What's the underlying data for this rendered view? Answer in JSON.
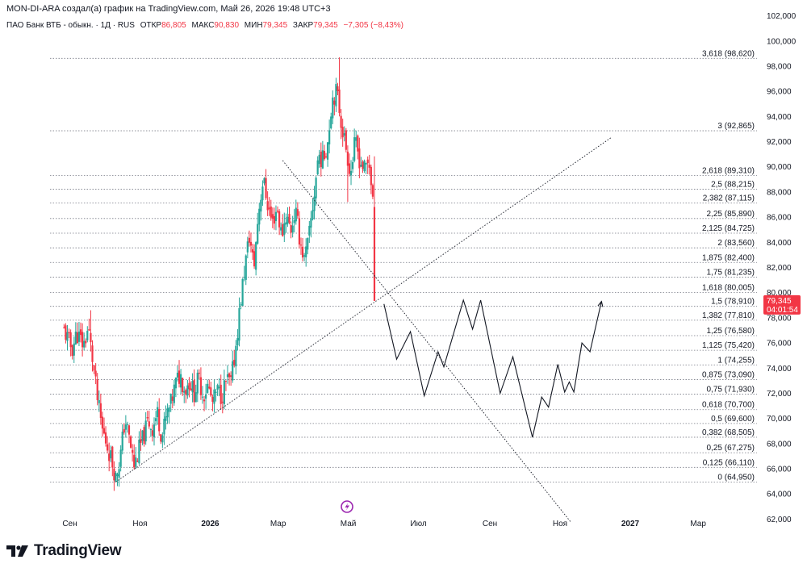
{
  "header": {
    "author_line": "MON-DI-ARA создал(а) график на TradingView.com, Май 26, 2026 19:48 UTC+3"
  },
  "symbol": {
    "name": "ПАО Банк ВТБ - обыкн. · 1Д · RUS",
    "open_label": "ОТКР",
    "open_value": "86,805",
    "high_label": "МАКС",
    "high_value": "90,830",
    "low_label": "МИН",
    "low_value": "79,345",
    "close_label": "ЗАКР",
    "close_value": "79,345",
    "change_value": "−7,305 (−8,43%)"
  },
  "price_badge": {
    "price": "79,345",
    "countdown": "04:01:54",
    "color": "#f23645"
  },
  "colors": {
    "up": "#26a69a",
    "down": "#f23645",
    "projection": "#131722",
    "fib_line": "#787b86"
  },
  "footer": {
    "brand": "TradingView",
    "logo_icon": "tradingview-logo-icon"
  },
  "chart_data": {
    "type": "candlestick",
    "y_axis": {
      "range": [
        61.0,
        103.0
      ],
      "ticks": [
        "102,000",
        "100,000",
        "98,000",
        "96,000",
        "94,000",
        "92,000",
        "90,000",
        "88,000",
        "86,000",
        "84,000",
        "82,000",
        "80,000",
        "78,000",
        "76,000",
        "74,000",
        "72,000",
        "70,000",
        "68,000",
        "66,000",
        "64,000",
        "62,000"
      ]
    },
    "x_axis": {
      "labels": [
        {
          "text": "Сен",
          "day": -20,
          "bold": false
        },
        {
          "text": "Ноя",
          "day": 41,
          "bold": false
        },
        {
          "text": "2026",
          "day": 102,
          "bold": true
        },
        {
          "text": "Мар",
          "day": 161,
          "bold": false
        },
        {
          "text": "Май",
          "day": 222,
          "bold": false
        },
        {
          "text": "Июл",
          "day": 283,
          "bold": false
        },
        {
          "text": "Сен",
          "day": 345,
          "bold": false
        },
        {
          "text": "Ноя",
          "day": 406,
          "bold": false
        },
        {
          "text": "2027",
          "day": 467,
          "bold": true
        },
        {
          "text": "Мар",
          "day": 526,
          "bold": false
        }
      ]
    },
    "price_path": [
      {
        "day": -25,
        "price": 77.0
      },
      {
        "day": -18,
        "price": 75.5
      },
      {
        "day": -14,
        "price": 76.8
      },
      {
        "day": -8,
        "price": 75.8
      },
      {
        "day": -4,
        "price": 77.2
      },
      {
        "day": 0,
        "price": 74.5
      },
      {
        "day": 4,
        "price": 71.5
      },
      {
        "day": 8,
        "price": 69.2
      },
      {
        "day": 12,
        "price": 68.0
      },
      {
        "day": 16,
        "price": 66.8
      },
      {
        "day": 20,
        "price": 65.3
      },
      {
        "day": 24,
        "price": 67.0
      },
      {
        "day": 28,
        "price": 70.0
      },
      {
        "day": 32,
        "price": 68.2
      },
      {
        "day": 36,
        "price": 66.2
      },
      {
        "day": 40,
        "price": 67.5
      },
      {
        "day": 44,
        "price": 68.5
      },
      {
        "day": 48,
        "price": 69.8
      },
      {
        "day": 52,
        "price": 69.2
      },
      {
        "day": 56,
        "price": 70.5
      },
      {
        "day": 60,
        "price": 68.5
      },
      {
        "day": 64,
        "price": 70.2
      },
      {
        "day": 68,
        "price": 71.2
      },
      {
        "day": 72,
        "price": 72.8
      },
      {
        "day": 76,
        "price": 73.5
      },
      {
        "day": 80,
        "price": 72.2
      },
      {
        "day": 84,
        "price": 73.0
      },
      {
        "day": 88,
        "price": 72.0
      },
      {
        "day": 92,
        "price": 73.2
      },
      {
        "day": 96,
        "price": 71.8
      },
      {
        "day": 100,
        "price": 72.6
      },
      {
        "day": 104,
        "price": 71.2
      },
      {
        "day": 108,
        "price": 72.2
      },
      {
        "day": 112,
        "price": 71.8
      },
      {
        "day": 116,
        "price": 73.0
      },
      {
        "day": 120,
        "price": 72.8
      },
      {
        "day": 124,
        "price": 75.5
      },
      {
        "day": 128,
        "price": 79.0
      },
      {
        "day": 132,
        "price": 82.0
      },
      {
        "day": 136,
        "price": 84.5
      },
      {
        "day": 140,
        "price": 82.0
      },
      {
        "day": 144,
        "price": 86.5
      },
      {
        "day": 148,
        "price": 89.0
      },
      {
        "day": 152,
        "price": 87.0
      },
      {
        "day": 156,
        "price": 85.5
      },
      {
        "day": 160,
        "price": 86.8
      },
      {
        "day": 164,
        "price": 84.5
      },
      {
        "day": 168,
        "price": 86.2
      },
      {
        "day": 172,
        "price": 85.0
      },
      {
        "day": 176,
        "price": 86.5
      },
      {
        "day": 180,
        "price": 84.2
      },
      {
        "day": 184,
        "price": 82.5
      },
      {
        "day": 188,
        "price": 84.5
      },
      {
        "day": 192,
        "price": 87.5
      },
      {
        "day": 196,
        "price": 91.0
      },
      {
        "day": 200,
        "price": 90.5
      },
      {
        "day": 204,
        "price": 92.0
      },
      {
        "day": 208,
        "price": 95.5
      },
      {
        "day": 212,
        "price": 96.0
      },
      {
        "day": 216,
        "price": 93.5
      },
      {
        "day": 220,
        "price": 91.5
      },
      {
        "day": 224,
        "price": 89.5
      },
      {
        "day": 228,
        "price": 92.0
      },
      {
        "day": 232,
        "price": 90.5
      },
      {
        "day": 236,
        "price": 89.8
      },
      {
        "day": 240,
        "price": 90.5
      },
      {
        "day": 244,
        "price": 86.8
      },
      {
        "day": 246,
        "price": 79.345
      }
    ],
    "extremes": {
      "low": {
        "day": 20,
        "price": 64.95
      },
      "high": {
        "day": 214,
        "price": 98.7
      },
      "spike_up": {
        "day": -2,
        "price": 78.6
      },
      "spike_down": {
        "day": 222,
        "price": 87.2
      }
    },
    "fib_levels": [
      {
        "label": "3,618 (98,620)",
        "price": 98.62
      },
      {
        "label": "3 (92,865)",
        "price": 92.865
      },
      {
        "label": "2,618 (89,310)",
        "price": 89.31
      },
      {
        "label": "2,5 (88,215)",
        "price": 88.215
      },
      {
        "label": "2,382 (87,115)",
        "price": 87.115
      },
      {
        "label": "2,25 (85,890)",
        "price": 85.89
      },
      {
        "label": "2,125 (84,725)",
        "price": 84.725
      },
      {
        "label": "2 (83,560)",
        "price": 83.56
      },
      {
        "label": "1,875 (82,400)",
        "price": 82.4
      },
      {
        "label": "1,75 (81,235)",
        "price": 81.235
      },
      {
        "label": "1,618 (80,005)",
        "price": 80.005
      },
      {
        "label": "1,5 (78,910)",
        "price": 78.91
      },
      {
        "label": "1,382 (77,810)",
        "price": 77.81
      },
      {
        "label": "1,25 (76,580)",
        "price": 76.58
      },
      {
        "label": "1,125 (75,420)",
        "price": 75.42
      },
      {
        "label": "1 (74,255)",
        "price": 74.255
      },
      {
        "label": "0,875 (73,090)",
        "price": 73.09
      },
      {
        "label": "0,75 (71,930)",
        "price": 71.93
      },
      {
        "label": "0,618 (70,700)",
        "price": 70.7
      },
      {
        "label": "0,5 (69,600)",
        "price": 69.6
      },
      {
        "label": "0,382 (68,505)",
        "price": 68.505
      },
      {
        "label": "0,25 (67,275)",
        "price": 67.275
      },
      {
        "label": "0,125 (66,110)",
        "price": 66.11
      },
      {
        "label": "0 (64,950)",
        "price": 64.95
      }
    ],
    "trendlines": [
      {
        "name": "rising-trendline",
        "from": {
          "day": 20,
          "price": 64.95
        },
        "to": {
          "day": 450,
          "price": 92.3
        }
      },
      {
        "name": "falling-trendline",
        "from": {
          "day": 165,
          "price": 90.5
        },
        "to": {
          "day": 415,
          "price": 61.8
        }
      }
    ],
    "projection_path": [
      {
        "day": 253,
        "price": 79.1
      },
      {
        "day": 264,
        "price": 74.7
      },
      {
        "day": 276,
        "price": 76.9
      },
      {
        "day": 288,
        "price": 71.8
      },
      {
        "day": 300,
        "price": 75.3
      },
      {
        "day": 305,
        "price": 74.1
      },
      {
        "day": 322,
        "price": 79.4
      },
      {
        "day": 330,
        "price": 77.1
      },
      {
        "day": 337,
        "price": 79.4
      },
      {
        "day": 354,
        "price": 72.0
      },
      {
        "day": 365,
        "price": 74.9
      },
      {
        "day": 382,
        "price": 68.5
      },
      {
        "day": 390,
        "price": 71.7
      },
      {
        "day": 396,
        "price": 70.9
      },
      {
        "day": 404,
        "price": 74.3
      },
      {
        "day": 410,
        "price": 72.1
      },
      {
        "day": 414,
        "price": 72.9
      },
      {
        "day": 418,
        "price": 72.1
      },
      {
        "day": 425,
        "price": 76.0
      },
      {
        "day": 432,
        "price": 75.3
      },
      {
        "day": 442,
        "price": 79.3
      }
    ]
  }
}
